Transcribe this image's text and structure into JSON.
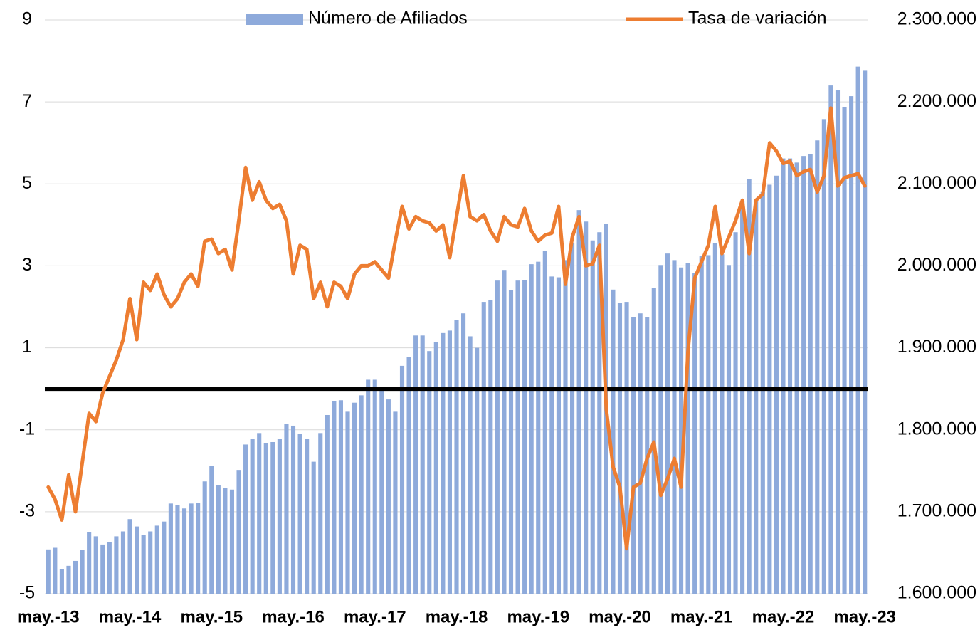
{
  "chart_data": {
    "type": "bar",
    "categories": [
      "may.-13",
      null,
      null,
      null,
      null,
      null,
      null,
      null,
      null,
      null,
      null,
      null,
      "may.-14",
      null,
      null,
      null,
      null,
      null,
      null,
      null,
      null,
      null,
      null,
      null,
      "may.-15",
      null,
      null,
      null,
      null,
      null,
      null,
      null,
      null,
      null,
      null,
      null,
      "may.-16",
      null,
      null,
      null,
      null,
      null,
      null,
      null,
      null,
      null,
      null,
      null,
      "may.-17",
      null,
      null,
      null,
      null,
      null,
      null,
      null,
      null,
      null,
      null,
      null,
      "may.-18",
      null,
      null,
      null,
      null,
      null,
      null,
      null,
      null,
      null,
      null,
      null,
      "may.-19",
      null,
      null,
      null,
      null,
      null,
      null,
      null,
      null,
      null,
      null,
      null,
      "may.-20",
      null,
      null,
      null,
      null,
      null,
      null,
      null,
      null,
      null,
      null,
      null,
      "may.-21",
      null,
      null,
      null,
      null,
      null,
      null,
      null,
      null,
      null,
      null,
      null,
      "may.-22",
      null,
      null,
      null,
      null,
      null,
      null,
      null,
      null,
      null,
      null,
      null,
      "may.-23"
    ],
    "series": [
      {
        "name": "Número de Afiliados",
        "type": "bar",
        "axis": "y2",
        "color": "#8eaadb",
        "values": [
          1654000,
          1656000,
          1630000,
          1634000,
          1640000,
          1653000,
          1675000,
          1670000,
          1660000,
          1663000,
          1670000,
          1676000,
          1691000,
          1682000,
          1672000,
          1676000,
          1683000,
          1688000,
          1710000,
          1708000,
          1704000,
          1710000,
          1711000,
          1737000,
          1756000,
          1732000,
          1729000,
          1727000,
          1751000,
          1782000,
          1789000,
          1796000,
          1784000,
          1785000,
          1789000,
          1807000,
          1805000,
          1795000,
          1789000,
          1761000,
          1796000,
          1818000,
          1835000,
          1836000,
          1822000,
          1833000,
          1842000,
          1861000,
          1861000,
          1849000,
          1837000,
          1822000,
          1878000,
          1889000,
          1915000,
          1915000,
          1896000,
          1907000,
          1918000,
          1921000,
          1934000,
          1942000,
          1914000,
          1900000,
          1956000,
          1958000,
          1982000,
          1995000,
          1970000,
          1982000,
          1983000,
          2002000,
          2005000,
          2018000,
          1987000,
          1986000,
          2007000,
          2028000,
          2068000,
          2054000,
          2031000,
          2041000,
          2051000,
          1971000,
          1955000,
          1956000,
          1937000,
          1942000,
          1937000,
          1973000,
          2001000,
          2015000,
          2007000,
          1998000,
          2003000,
          1991000,
          2012000,
          2013000,
          2028000,
          2014000,
          2001000,
          2041000,
          2079000,
          2106000,
          2079000,
          2090000,
          2099000,
          2110000,
          2131000,
          2131000,
          2126000,
          2134000,
          2136000,
          2153000,
          2179000,
          2220000,
          2214000,
          2194000,
          2207000,
          2243000,
          2238000
        ]
      },
      {
        "name": "Tasa de variación",
        "type": "line",
        "color": "#ed7d31",
        "values": [
          -2.4,
          -2.7,
          -3.2,
          -2.1,
          -3.0,
          -1.8,
          -0.6,
          -0.8,
          -0.1,
          0.3,
          0.7,
          1.2,
          2.2,
          1.2,
          2.6,
          2.4,
          2.8,
          2.3,
          2.0,
          2.2,
          2.6,
          2.8,
          2.5,
          3.6,
          3.65,
          3.3,
          3.4,
          2.9,
          4.1,
          5.4,
          4.6,
          5.05,
          4.6,
          4.4,
          4.5,
          4.1,
          2.8,
          3.5,
          3.4,
          2.2,
          2.6,
          2.0,
          2.6,
          2.5,
          2.2,
          2.8,
          3.0,
          3.0,
          3.1,
          2.9,
          2.7,
          3.6,
          4.45,
          3.9,
          4.2,
          4.1,
          4.05,
          3.85,
          4.0,
          3.2,
          4.2,
          5.2,
          4.2,
          4.1,
          4.25,
          3.85,
          3.6,
          4.2,
          4.0,
          3.95,
          4.4,
          3.85,
          3.6,
          3.75,
          3.8,
          4.45,
          2.55,
          3.7,
          4.2,
          3.0,
          3.05,
          3.5,
          -0.5,
          -1.9,
          -2.4,
          -3.9,
          -2.4,
          -2.3,
          -1.7,
          -1.3,
          -2.6,
          -2.2,
          -1.7,
          -2.4,
          0.9,
          2.7,
          3.1,
          3.5,
          4.45,
          3.3,
          3.7,
          4.1,
          4.6,
          3.3,
          4.6,
          4.75,
          6.0,
          5.8,
          5.5,
          5.55,
          5.2,
          5.3,
          5.35,
          4.8,
          5.2,
          6.85,
          4.95,
          5.15,
          5.2,
          5.25,
          4.95
        ]
      }
    ],
    "ylim": [
      -5,
      9
    ],
    "yticks": [
      -5,
      -3,
      -1,
      1,
      3,
      5,
      7,
      9
    ],
    "y2lim": [
      1600000,
      2300000
    ],
    "y2ticks": [
      {
        "value": 1600000,
        "label": "1.600.000"
      },
      {
        "value": 1700000,
        "label": "1.700.000"
      },
      {
        "value": 1800000,
        "label": "1.800.000"
      },
      {
        "value": 1900000,
        "label": "1.900.000"
      },
      {
        "value": 2000000,
        "label": "2.000.000"
      },
      {
        "value": 2100000,
        "label": "2.100.000"
      },
      {
        "value": 2200000,
        "label": "2.200.000"
      },
      {
        "value": 2300000,
        "label": "2.300.000"
      }
    ],
    "grid": true,
    "legend": "top"
  }
}
